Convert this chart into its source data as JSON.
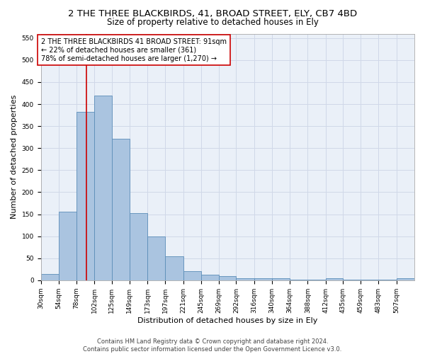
{
  "title1": "2 THE THREE BLACKBIRDS, 41, BROAD STREET, ELY, CB7 4BD",
  "title2": "Size of property relative to detached houses in Ely",
  "xlabel": "Distribution of detached houses by size in Ely",
  "ylabel": "Number of detached properties",
  "footer": "Contains HM Land Registry data © Crown copyright and database right 2024.\nContains public sector information licensed under the Open Government Licence v3.0.",
  "annotation_title": "2 THE THREE BLACKBIRDS 41 BROAD STREET: 91sqm",
  "annotation_line2": "← 22% of detached houses are smaller (361)",
  "annotation_line3": "78% of semi-detached houses are larger (1,270) →",
  "bar_color": "#aac4e0",
  "bar_edge_color": "#5b8db8",
  "ref_line_color": "#cc0000",
  "ref_line_x": 91,
  "annotation_box_color": "#ffffff",
  "annotation_box_edge": "#cc0000",
  "categories": [
    "30sqm",
    "54sqm",
    "78sqm",
    "102sqm",
    "125sqm",
    "149sqm",
    "173sqm",
    "197sqm",
    "221sqm",
    "245sqm",
    "269sqm",
    "292sqm",
    "316sqm",
    "340sqm",
    "364sqm",
    "388sqm",
    "412sqm",
    "435sqm",
    "459sqm",
    "483sqm",
    "507sqm"
  ],
  "bin_edges": [
    30,
    54,
    78,
    102,
    125,
    149,
    173,
    197,
    221,
    245,
    269,
    292,
    316,
    340,
    364,
    388,
    412,
    435,
    459,
    483,
    507
  ],
  "bin_widths": [
    24,
    24,
    24,
    23,
    24,
    24,
    24,
    24,
    24,
    24,
    23,
    24,
    24,
    24,
    24,
    24,
    23,
    24,
    24,
    24,
    24
  ],
  "values": [
    15,
    155,
    383,
    420,
    321,
    152,
    100,
    55,
    20,
    12,
    10,
    4,
    4,
    4,
    2,
    2,
    5,
    2,
    2,
    2,
    5
  ],
  "ylim": [
    0,
    560
  ],
  "yticks": [
    0,
    50,
    100,
    150,
    200,
    250,
    300,
    350,
    400,
    450,
    500,
    550
  ],
  "grid_color": "#d0d8e8",
  "bg_color": "#eaf0f8",
  "title_fontsize": 9.5,
  "subtitle_fontsize": 8.5,
  "tick_fontsize": 6.5,
  "label_fontsize": 8,
  "annotation_fontsize": 7,
  "footer_fontsize": 6
}
